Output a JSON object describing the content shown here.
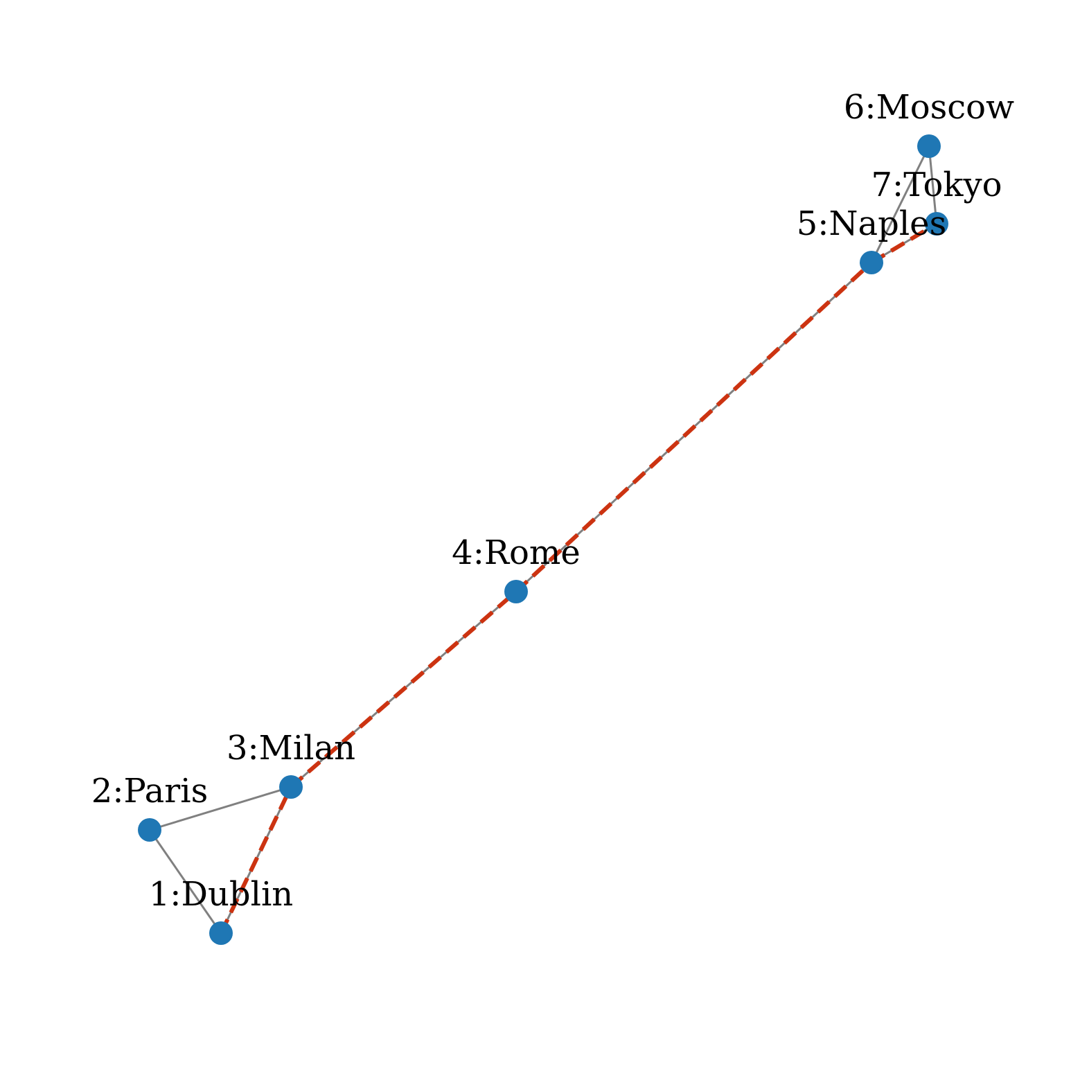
{
  "colors": {
    "node": "#1f77b4",
    "edge": "#808080",
    "path": "#cc3311",
    "label": "#000000",
    "background": "#ffffff"
  },
  "graph": {
    "nodes": [
      {
        "id": 1,
        "label": "1:Dublin"
      },
      {
        "id": 2,
        "label": "2:Paris"
      },
      {
        "id": 3,
        "label": "3:Milan"
      },
      {
        "id": 4,
        "label": "4:Rome"
      },
      {
        "id": 5,
        "label": "5:Naples"
      },
      {
        "id": 6,
        "label": "6:Moscow"
      },
      {
        "id": 7,
        "label": "7:Tokyo"
      }
    ],
    "edges": [
      {
        "from": 1,
        "to": 2
      },
      {
        "from": 2,
        "to": 3
      },
      {
        "from": 1,
        "to": 3
      },
      {
        "from": 3,
        "to": 4
      },
      {
        "from": 4,
        "to": 5
      },
      {
        "from": 5,
        "to": 6
      },
      {
        "from": 6,
        "to": 7
      },
      {
        "from": 5,
        "to": 7
      }
    ],
    "highlighted_path": [
      1,
      3,
      4,
      5,
      7
    ]
  }
}
